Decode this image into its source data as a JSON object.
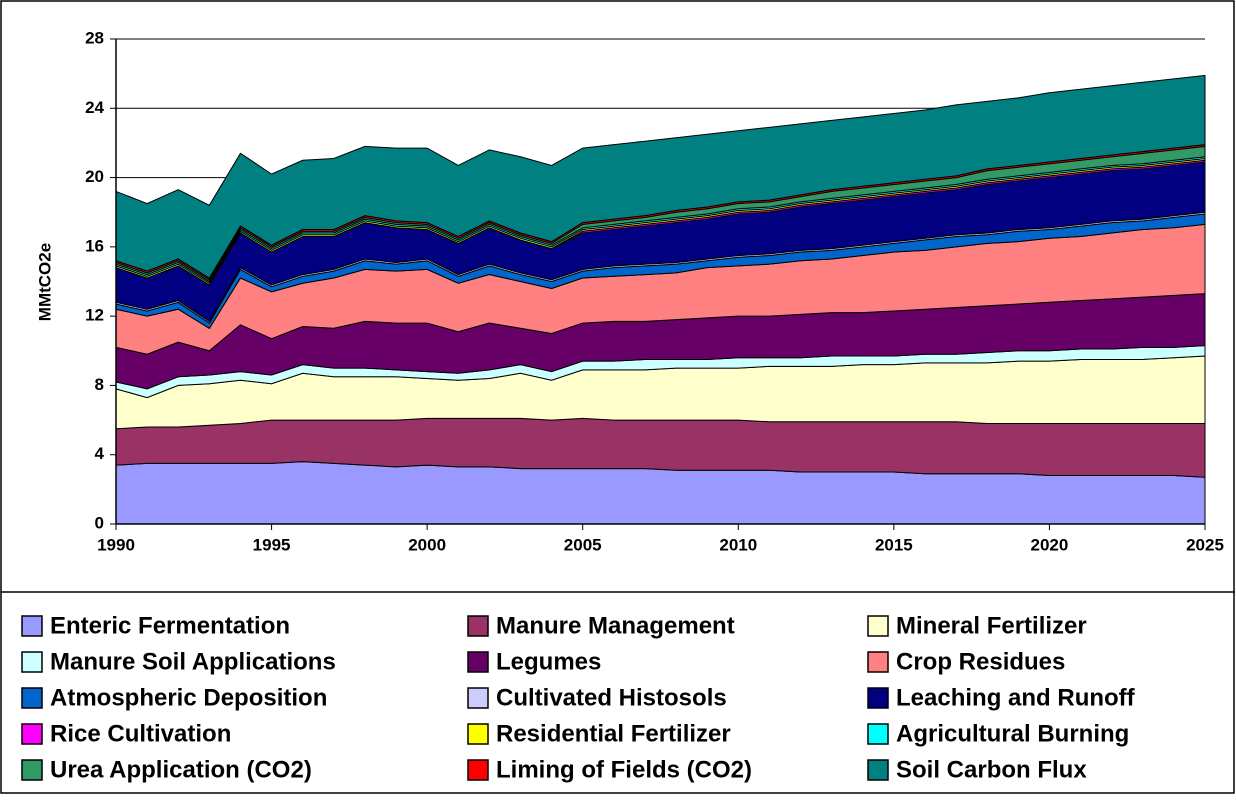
{
  "chart_data": {
    "type": "stacked_area",
    "ylabel": "MMtCO2e",
    "x": [
      1990,
      1991,
      1992,
      1993,
      1994,
      1995,
      1996,
      1997,
      1998,
      1999,
      2000,
      2001,
      2002,
      2003,
      2004,
      2005,
      2006,
      2007,
      2008,
      2009,
      2010,
      2011,
      2012,
      2013,
      2014,
      2015,
      2016,
      2017,
      2018,
      2019,
      2020,
      2021,
      2022,
      2023,
      2024,
      2025
    ],
    "xlim": [
      1990,
      2025
    ],
    "xticks": [
      1990,
      1995,
      2000,
      2005,
      2010,
      2015,
      2020,
      2025
    ],
    "ylim": [
      0,
      28
    ],
    "yticks": [
      0,
      4,
      8,
      12,
      16,
      20,
      24,
      28
    ],
    "grid": true,
    "legend": "bottom",
    "series": [
      {
        "name": "Enteric Fermentation",
        "color": "#9999ff",
        "values": [
          3.4,
          3.5,
          3.5,
          3.5,
          3.5,
          3.5,
          3.6,
          3.5,
          3.4,
          3.3,
          3.4,
          3.3,
          3.3,
          3.2,
          3.2,
          3.2,
          3.2,
          3.2,
          3.1,
          3.1,
          3.1,
          3.1,
          3.0,
          3.0,
          3.0,
          3.0,
          2.9,
          2.9,
          2.9,
          2.9,
          2.8,
          2.8,
          2.8,
          2.8,
          2.8,
          2.7
        ]
      },
      {
        "name": "Manure Management",
        "color": "#993366",
        "values": [
          2.1,
          2.1,
          2.1,
          2.2,
          2.3,
          2.5,
          2.4,
          2.5,
          2.6,
          2.7,
          2.7,
          2.8,
          2.8,
          2.9,
          2.8,
          2.9,
          2.8,
          2.8,
          2.9,
          2.9,
          2.9,
          2.8,
          2.9,
          2.9,
          2.9,
          2.9,
          3.0,
          3.0,
          2.9,
          2.9,
          3.0,
          3.0,
          3.0,
          3.0,
          3.0,
          3.1
        ]
      },
      {
        "name": "Mineral Fertilizer",
        "color": "#ffffcc",
        "values": [
          2.3,
          1.7,
          2.4,
          2.4,
          2.5,
          2.1,
          2.7,
          2.5,
          2.5,
          2.5,
          2.3,
          2.2,
          2.3,
          2.6,
          2.3,
          2.8,
          2.9,
          2.9,
          3.0,
          3.0,
          3.0,
          3.2,
          3.2,
          3.2,
          3.3,
          3.3,
          3.4,
          3.4,
          3.5,
          3.6,
          3.6,
          3.7,
          3.7,
          3.7,
          3.8,
          3.9
        ]
      },
      {
        "name": "Manure Soil Applications",
        "color": "#ccffff",
        "values": [
          0.4,
          0.5,
          0.5,
          0.5,
          0.5,
          0.5,
          0.5,
          0.5,
          0.5,
          0.4,
          0.4,
          0.4,
          0.5,
          0.5,
          0.5,
          0.5,
          0.5,
          0.6,
          0.5,
          0.5,
          0.6,
          0.5,
          0.5,
          0.6,
          0.5,
          0.5,
          0.5,
          0.5,
          0.6,
          0.6,
          0.6,
          0.6,
          0.6,
          0.7,
          0.6,
          0.6
        ]
      },
      {
        "name": "Legumes",
        "color": "#660066",
        "values": [
          2.0,
          2.0,
          2.0,
          1.4,
          2.7,
          2.1,
          2.2,
          2.3,
          2.7,
          2.7,
          2.8,
          2.4,
          2.7,
          2.1,
          2.2,
          2.2,
          2.3,
          2.2,
          2.3,
          2.4,
          2.4,
          2.4,
          2.5,
          2.5,
          2.5,
          2.6,
          2.6,
          2.7,
          2.7,
          2.7,
          2.8,
          2.8,
          2.9,
          2.9,
          3.0,
          3.0
        ]
      },
      {
        "name": "Crop Residues",
        "color": "#ff8080",
        "values": [
          2.2,
          2.2,
          1.9,
          1.3,
          2.7,
          2.7,
          2.5,
          2.9,
          3.0,
          3.0,
          3.1,
          2.8,
          2.8,
          2.7,
          2.6,
          2.6,
          2.6,
          2.7,
          2.7,
          2.9,
          2.9,
          3.0,
          3.1,
          3.1,
          3.3,
          3.4,
          3.4,
          3.5,
          3.6,
          3.6,
          3.7,
          3.7,
          3.8,
          3.9,
          3.9,
          4.0
        ]
      },
      {
        "name": "Atmospheric Deposition",
        "color": "#0066cc",
        "values": [
          0.3,
          0.3,
          0.4,
          0.3,
          0.5,
          0.3,
          0.4,
          0.4,
          0.5,
          0.4,
          0.5,
          0.4,
          0.5,
          0.4,
          0.4,
          0.4,
          0.5,
          0.5,
          0.5,
          0.4,
          0.5,
          0.5,
          0.5,
          0.5,
          0.5,
          0.5,
          0.6,
          0.6,
          0.5,
          0.6,
          0.5,
          0.6,
          0.6,
          0.5,
          0.6,
          0.6
        ]
      },
      {
        "name": "Cultivated Histosols",
        "color": "#ccccff",
        "values": [
          0.1,
          0.1,
          0.1,
          0.1,
          0.1,
          0.1,
          0.1,
          0.1,
          0.1,
          0.1,
          0.1,
          0.1,
          0.1,
          0.1,
          0.1,
          0.1,
          0.1,
          0.1,
          0.1,
          0.1,
          0.1,
          0.1,
          0.1,
          0.1,
          0.1,
          0.1,
          0.1,
          0.1,
          0.1,
          0.1,
          0.1,
          0.1,
          0.1,
          0.1,
          0.1,
          0.1
        ]
      },
      {
        "name": "Leaching and Runoff",
        "color": "#000080",
        "values": [
          2.0,
          1.8,
          2.0,
          2.1,
          2.0,
          1.9,
          2.2,
          1.9,
          2.1,
          2.0,
          1.7,
          1.8,
          2.1,
          1.9,
          1.8,
          2.1,
          2.1,
          2.2,
          2.3,
          2.3,
          2.4,
          2.4,
          2.5,
          2.6,
          2.6,
          2.6,
          2.6,
          2.6,
          2.8,
          2.8,
          2.9,
          2.9,
          2.9,
          2.9,
          2.9,
          2.9
        ]
      },
      {
        "name": "Rice Cultivation",
        "color": "#ff00ff",
        "values": [
          0,
          0,
          0,
          0,
          0,
          0,
          0,
          0,
          0,
          0,
          0,
          0,
          0,
          0,
          0,
          0.1,
          0.1,
          0.1,
          0.1,
          0.1,
          0.1,
          0.1,
          0.1,
          0.1,
          0.1,
          0.1,
          0.1,
          0.1,
          0.1,
          0.1,
          0.1,
          0.1,
          0.1,
          0.1,
          0.1,
          0.1
        ]
      },
      {
        "name": "Residential Fertilizer",
        "color": "#ffff00",
        "values": [
          0.1,
          0.1,
          0.1,
          0.1,
          0.1,
          0.1,
          0.1,
          0.1,
          0.1,
          0.1,
          0.1,
          0.1,
          0.1,
          0.1,
          0.1,
          0.1,
          0.1,
          0.1,
          0.1,
          0.1,
          0.1,
          0.1,
          0.1,
          0.1,
          0.1,
          0.1,
          0.1,
          0.1,
          0.1,
          0.1,
          0.1,
          0.1,
          0.1,
          0.1,
          0.1,
          0.1
        ]
      },
      {
        "name": "Agricultural Burning",
        "color": "#00ffff",
        "values": [
          0.1,
          0.1,
          0.1,
          0.1,
          0.1,
          0.1,
          0.1,
          0.1,
          0.1,
          0.1,
          0.1,
          0.1,
          0.1,
          0.1,
          0.1,
          0.1,
          0.1,
          0.1,
          0.1,
          0.1,
          0.1,
          0.1,
          0.1,
          0.1,
          0.1,
          0.1,
          0.1,
          0.1,
          0.1,
          0.1,
          0.1,
          0.1,
          0.1,
          0.1,
          0.1,
          0.1
        ]
      },
      {
        "name": "Urea Application (CO2)",
        "color": "#339966",
        "values": [
          0.1,
          0.1,
          0.1,
          0.1,
          0.1,
          0.1,
          0.1,
          0.1,
          0.1,
          0.1,
          0.1,
          0.1,
          0.1,
          0.1,
          0.1,
          0.2,
          0.2,
          0.2,
          0.3,
          0.3,
          0.3,
          0.3,
          0.3,
          0.4,
          0.4,
          0.4,
          0.4,
          0.4,
          0.5,
          0.5,
          0.5,
          0.5,
          0.5,
          0.6,
          0.6,
          0.6
        ]
      },
      {
        "name": "Liming of Fields (CO2)",
        "color": "#ff0000",
        "values": [
          0.1,
          0.1,
          0.1,
          0.1,
          0.1,
          0.1,
          0.1,
          0.1,
          0.1,
          0.1,
          0.1,
          0.1,
          0.1,
          0.1,
          0.1,
          0.1,
          0.1,
          0.1,
          0.1,
          0.1,
          0.1,
          0.1,
          0.1,
          0.1,
          0.1,
          0.1,
          0.1,
          0.1,
          0.1,
          0.1,
          0.1,
          0.1,
          0.1,
          0.1,
          0.1,
          0.1
        ]
      },
      {
        "name": "Soil Carbon Flux",
        "color": "#008080",
        "values": [
          4.0,
          3.9,
          4.0,
          4.2,
          4.2,
          4.1,
          4.0,
          4.1,
          4.0,
          4.2,
          4.3,
          4.1,
          4.1,
          4.4,
          4.4,
          4.3,
          4.3,
          4.3,
          4.2,
          4.2,
          4.1,
          4.2,
          4.1,
          4.0,
          4.0,
          4.0,
          4.0,
          4.1,
          3.9,
          3.9,
          4.0,
          4.0,
          4.0,
          4.0,
          4.0,
          4.0
        ]
      }
    ]
  }
}
